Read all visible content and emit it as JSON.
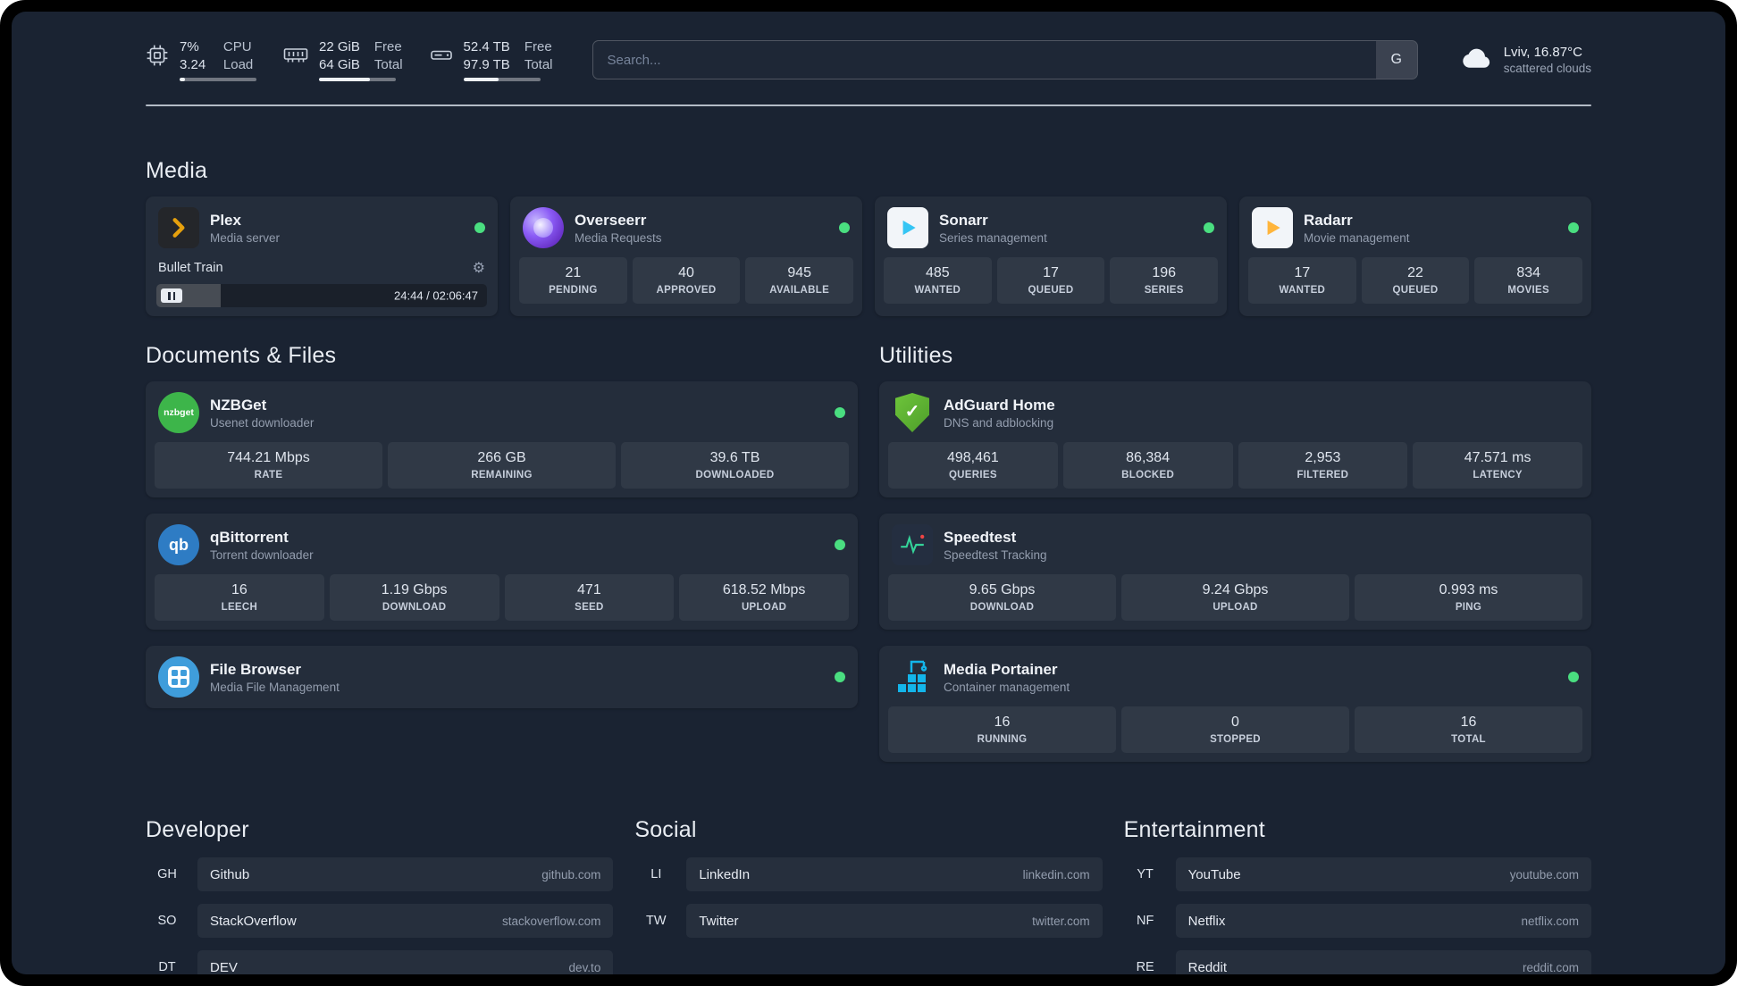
{
  "colors": {
    "background": "#1a2332",
    "status_online": "#4ade80",
    "plex_brand": "#e5a00d",
    "overseerr_brand": "#7c3aed",
    "sonarr_brand": "#35c5f4",
    "radarr_brand": "#ffb53c",
    "nzbget_brand": "#3db54a",
    "qbittorrent_brand": "#2e7cc4",
    "filebrowser_brand": "#3f9ddb",
    "adguard_brand": "#67b32e",
    "speedtest_accent": "#34d399",
    "portainer_brand": "#13b5ea"
  },
  "header": {
    "cpu": {
      "v1": "7%",
      "l1": "CPU",
      "v2": "3.24",
      "l2": "Load",
      "progress": 7
    },
    "mem": {
      "v1": "22 GiB",
      "l1": "Free",
      "v2": "64 GiB",
      "l2": "Total",
      "progress": 66
    },
    "disk": {
      "v1": "52.4 TB",
      "l1": "Free",
      "v2": "97.9 TB",
      "l2": "Total",
      "progress": 46
    },
    "search": {
      "placeholder": "Search...",
      "button_label": "G"
    },
    "weather": {
      "location": "Lviv, 16.87°C",
      "condition": "scattered clouds"
    }
  },
  "media": {
    "title": "Media",
    "plex": {
      "name": "Plex",
      "subtitle": "Media server",
      "now_playing": {
        "title": "Bullet Train",
        "time": "24:44 / 02:06:47",
        "progress_pct": 19.5
      }
    },
    "overseerr": {
      "name": "Overseerr",
      "subtitle": "Media Requests",
      "stats": [
        {
          "value": "21",
          "label": "PENDING"
        },
        {
          "value": "40",
          "label": "APPROVED"
        },
        {
          "value": "945",
          "label": "AVAILABLE"
        }
      ]
    },
    "sonarr": {
      "name": "Sonarr",
      "subtitle": "Series management",
      "stats": [
        {
          "value": "485",
          "label": "WANTED"
        },
        {
          "value": "17",
          "label": "QUEUED"
        },
        {
          "value": "196",
          "label": "SERIES"
        }
      ]
    },
    "radarr": {
      "name": "Radarr",
      "subtitle": "Movie management",
      "stats": [
        {
          "value": "17",
          "label": "WANTED"
        },
        {
          "value": "22",
          "label": "QUEUED"
        },
        {
          "value": "834",
          "label": "MOVIES"
        }
      ]
    }
  },
  "documents": {
    "title": "Documents & Files",
    "nzbget": {
      "name": "NZBGet",
      "subtitle": "Usenet downloader",
      "icon_text": "nzbget",
      "stats": [
        {
          "value": "744.21 Mbps",
          "label": "RATE"
        },
        {
          "value": "266 GB",
          "label": "REMAINING"
        },
        {
          "value": "39.6 TB",
          "label": "DOWNLOADED"
        }
      ]
    },
    "qbittorrent": {
      "name": "qBittorrent",
      "subtitle": "Torrent downloader",
      "icon_text": "qb",
      "stats": [
        {
          "value": "16",
          "label": "LEECH"
        },
        {
          "value": "1.19 Gbps",
          "label": "DOWNLOAD"
        },
        {
          "value": "471",
          "label": "SEED"
        },
        {
          "value": "618.52 Mbps",
          "label": "UPLOAD"
        }
      ]
    },
    "filebrowser": {
      "name": "File Browser",
      "subtitle": "Media File Management"
    }
  },
  "utilities": {
    "title": "Utilities",
    "adguard": {
      "name": "AdGuard Home",
      "subtitle": "DNS and adblocking",
      "stats": [
        {
          "value": "498,461",
          "label": "QUERIES"
        },
        {
          "value": "86,384",
          "label": "BLOCKED"
        },
        {
          "value": "2,953",
          "label": "FILTERED"
        },
        {
          "value": "47.571 ms",
          "label": "LATENCY"
        }
      ]
    },
    "speedtest": {
      "name": "Speedtest",
      "subtitle": "Speedtest Tracking",
      "stats": [
        {
          "value": "9.65 Gbps",
          "label": "DOWNLOAD"
        },
        {
          "value": "9.24 Gbps",
          "label": "UPLOAD"
        },
        {
          "value": "0.993 ms",
          "label": "PING"
        }
      ]
    },
    "portainer": {
      "name": "Media Portainer",
      "subtitle": "Container management",
      "stats": [
        {
          "value": "16",
          "label": "RUNNING"
        },
        {
          "value": "0",
          "label": "STOPPED"
        },
        {
          "value": "16",
          "label": "TOTAL"
        }
      ]
    }
  },
  "bookmarks": {
    "developer": {
      "title": "Developer",
      "items": [
        {
          "abbr": "GH",
          "name": "Github",
          "url": "github.com"
        },
        {
          "abbr": "SO",
          "name": "StackOverflow",
          "url": "stackoverflow.com"
        },
        {
          "abbr": "DT",
          "name": "DEV",
          "url": "dev.to"
        }
      ]
    },
    "social": {
      "title": "Social",
      "items": [
        {
          "abbr": "LI",
          "name": "LinkedIn",
          "url": "linkedin.com"
        },
        {
          "abbr": "TW",
          "name": "Twitter",
          "url": "twitter.com"
        }
      ]
    },
    "entertainment": {
      "title": "Entertainment",
      "items": [
        {
          "abbr": "YT",
          "name": "YouTube",
          "url": "youtube.com"
        },
        {
          "abbr": "NF",
          "name": "Netflix",
          "url": "netflix.com"
        },
        {
          "abbr": "RE",
          "name": "Reddit",
          "url": "reddit.com"
        }
      ]
    }
  }
}
